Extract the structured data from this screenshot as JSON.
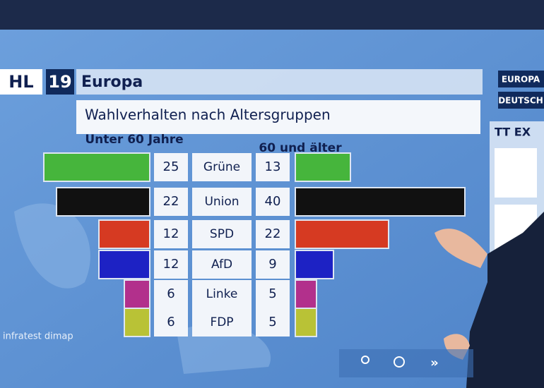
{
  "chart_data": {
    "type": "bar",
    "logo": "HL",
    "edition": "19",
    "title": "Europa",
    "subtitle": "Wahlverhalten nach Altersgruppen",
    "categories": [
      "Grüne",
      "Union",
      "SPD",
      "AfD",
      "Linke",
      "FDP"
    ],
    "colors": [
      "#46b53c",
      "#111111",
      "#d63a22",
      "#1d22c4",
      "#b2308c",
      "#b9c236"
    ],
    "series": [
      {
        "name": "Unter 60 Jahre",
        "values": [
          25,
          22,
          12,
          12,
          6,
          6
        ]
      },
      {
        "name": "60 und älter",
        "values": [
          13,
          40,
          22,
          9,
          5,
          5
        ]
      }
    ],
    "source": "infratest dimap",
    "side_tabs": [
      "EUROPA",
      "DEUTSCH"
    ],
    "side_panel": "TT EX"
  }
}
